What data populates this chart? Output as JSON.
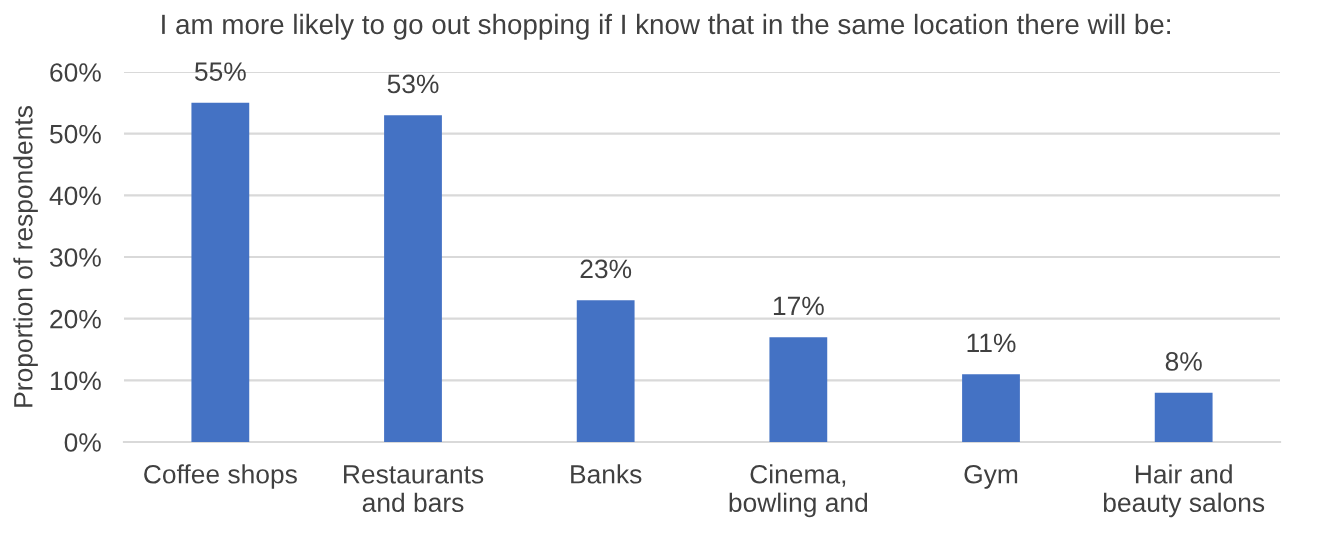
{
  "chart_data": {
    "type": "bar",
    "title": "I am more likely to go out shopping if I know that in the same location there will be:",
    "ylabel": "Proportion of respondents",
    "categories": [
      "Coffee shops",
      "Restaurants\nand bars",
      "Banks",
      "Cinema,\nbowling and",
      "Gym",
      "Hair and\nbeauty salons"
    ],
    "values": [
      55,
      53,
      23,
      17,
      11,
      8
    ],
    "color": "#4472c4",
    "value_labels": [
      "55%",
      "53%",
      "23%",
      "17%",
      "11%",
      "8%"
    ],
    "ylim": [
      0,
      60
    ],
    "yticks": [
      {
        "value": 0,
        "label": "0%"
      },
      {
        "value": 10,
        "label": "10%"
      },
      {
        "value": 20,
        "label": "20%"
      },
      {
        "value": 30,
        "label": "30%"
      },
      {
        "value": 40,
        "label": "40%"
      },
      {
        "value": 50,
        "label": "50%"
      },
      {
        "value": 60,
        "label": "60%"
      }
    ],
    "grid": "y"
  }
}
